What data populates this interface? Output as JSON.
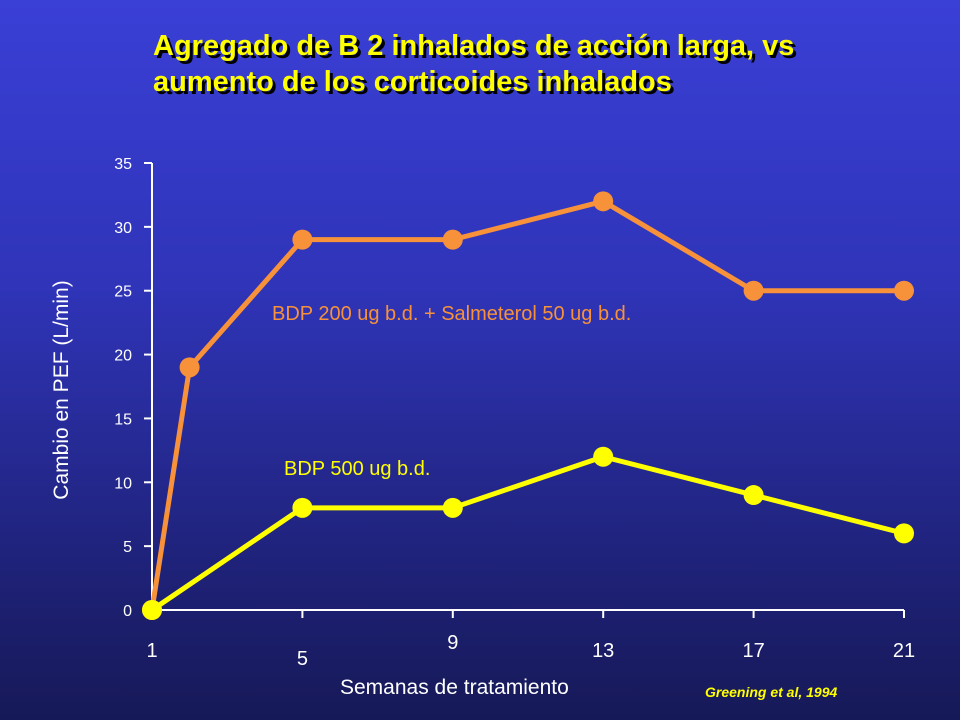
{
  "chart_data": {
    "type": "line",
    "title_lines": [
      "Agregado de B 2 inhalados de acción larga, vs",
      "aumento de los corticoides inhalados"
    ],
    "xlabel": "Semanas de tratamiento",
    "ylabel": "Cambio en PEF (L/min)",
    "x_ticks": [
      1,
      5,
      9,
      13,
      17,
      21
    ],
    "y_ticks": [
      0,
      5,
      10,
      15,
      20,
      25,
      30,
      35
    ],
    "xlim": [
      1,
      21
    ],
    "ylim": [
      0,
      35
    ],
    "series": [
      {
        "name": "BDP 200 ug b.d. + Salmeterol 50 ug b.d.",
        "color": "#f7913a",
        "x": [
          1,
          2,
          5,
          9,
          13,
          17,
          21
        ],
        "values": [
          0,
          19,
          29,
          29,
          32,
          25,
          25
        ]
      },
      {
        "name": "BDP 500 ug b.d.",
        "color": "#ffff00",
        "x": [
          1,
          5,
          9,
          13,
          17,
          21
        ],
        "values": [
          0,
          8,
          8,
          12,
          9,
          6
        ]
      }
    ],
    "source": "Greening et al, 1994"
  }
}
